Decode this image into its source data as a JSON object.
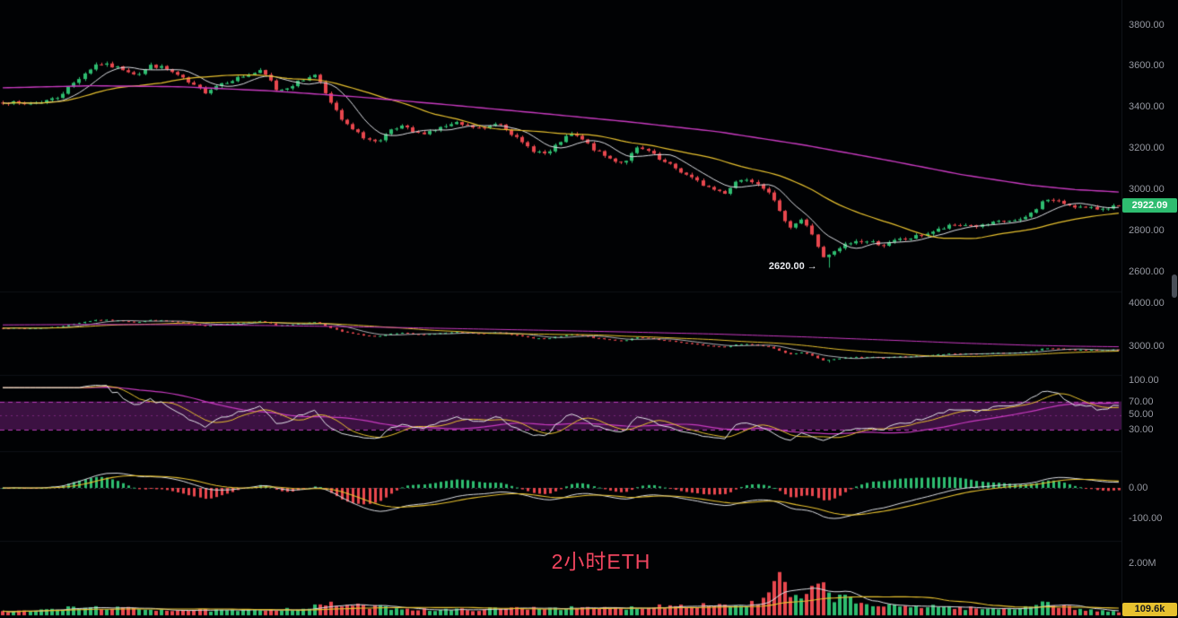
{
  "page": {
    "background": "#010204",
    "axis_text_color": "#9598a1"
  },
  "chart_data": [
    {
      "name": "price",
      "type": "candlestick",
      "candles": 205,
      "seed": 7,
      "noise": 9,
      "colors": {
        "up": "#2ebd70",
        "down": "#e8474e",
        "ma_fast": "#dcdee3",
        "ma_mid": "#e7c12f",
        "ma_slow": "#c93bc1"
      },
      "y_ticks": [
        {
          "value": 3800,
          "label": "3800.00",
          "y": 28
        },
        {
          "value": 3600,
          "label": "3600.00",
          "y": 73
        },
        {
          "value": 3400,
          "label": "3400.00",
          "y": 119
        },
        {
          "value": 3200,
          "label": "3200.00",
          "y": 165
        },
        {
          "value": 3000,
          "label": "3000.00",
          "y": 211
        },
        {
          "value": 2800,
          "label": "2800.00",
          "y": 257
        },
        {
          "value": 2600,
          "label": "2600.00",
          "y": 303
        }
      ],
      "candle_anchors": [
        [
          0,
          3430
        ],
        [
          0.016,
          3415
        ],
        [
          0.032,
          3425
        ],
        [
          0.048,
          3445
        ],
        [
          0.06,
          3500
        ],
        [
          0.073,
          3565
        ],
        [
          0.085,
          3615
        ],
        [
          0.097,
          3600
        ],
        [
          0.109,
          3585
        ],
        [
          0.121,
          3560
        ],
        [
          0.133,
          3605
        ],
        [
          0.145,
          3590
        ],
        [
          0.157,
          3555
        ],
        [
          0.169,
          3510
        ],
        [
          0.181,
          3475
        ],
        [
          0.194,
          3515
        ],
        [
          0.206,
          3535
        ],
        [
          0.218,
          3555
        ],
        [
          0.23,
          3575
        ],
        [
          0.238,
          3545
        ],
        [
          0.246,
          3480
        ],
        [
          0.258,
          3505
        ],
        [
          0.27,
          3535
        ],
        [
          0.278,
          3565
        ],
        [
          0.286,
          3515
        ],
        [
          0.294,
          3420
        ],
        [
          0.305,
          3330
        ],
        [
          0.316,
          3280
        ],
        [
          0.327,
          3245
        ],
        [
          0.337,
          3225
        ],
        [
          0.347,
          3285
        ],
        [
          0.359,
          3305
        ],
        [
          0.371,
          3270
        ],
        [
          0.383,
          3285
        ],
        [
          0.395,
          3305
        ],
        [
          0.407,
          3320
        ],
        [
          0.419,
          3305
        ],
        [
          0.431,
          3295
        ],
        [
          0.444,
          3330
        ],
        [
          0.453,
          3290
        ],
        [
          0.464,
          3230
        ],
        [
          0.476,
          3190
        ],
        [
          0.488,
          3170
        ],
        [
          0.5,
          3235
        ],
        [
          0.51,
          3270
        ],
        [
          0.52,
          3240
        ],
        [
          0.532,
          3185
        ],
        [
          0.544,
          3150
        ],
        [
          0.556,
          3130
        ],
        [
          0.569,
          3200
        ],
        [
          0.579,
          3185
        ],
        [
          0.589,
          3140
        ],
        [
          0.601,
          3110
        ],
        [
          0.613,
          3070
        ],
        [
          0.625,
          3030
        ],
        [
          0.637,
          3000
        ],
        [
          0.647,
          2985
        ],
        [
          0.657,
          3040
        ],
        [
          0.668,
          3055
        ],
        [
          0.677,
          3030
        ],
        [
          0.687,
          2990
        ],
        [
          0.695,
          2895
        ],
        [
          0.706,
          2820
        ],
        [
          0.716,
          2855
        ],
        [
          0.726,
          2780
        ],
        [
          0.735,
          2665
        ],
        [
          0.744,
          2690
        ],
        [
          0.754,
          2730
        ],
        [
          0.766,
          2750
        ],
        [
          0.778,
          2745
        ],
        [
          0.79,
          2730
        ],
        [
          0.802,
          2755
        ],
        [
          0.815,
          2765
        ],
        [
          0.827,
          2785
        ],
        [
          0.839,
          2805
        ],
        [
          0.851,
          2825
        ],
        [
          0.863,
          2830
        ],
        [
          0.875,
          2820
        ],
        [
          0.887,
          2835
        ],
        [
          0.899,
          2850
        ],
        [
          0.911,
          2845
        ],
        [
          0.923,
          2890
        ],
        [
          0.934,
          2955
        ],
        [
          0.945,
          2940
        ],
        [
          0.957,
          2925
        ],
        [
          0.968,
          2910
        ],
        [
          0.979,
          2905
        ],
        [
          0.99,
          2915
        ],
        [
          1,
          2922
        ]
      ],
      "ma_slow_anchors": [
        [
          0,
          3495
        ],
        [
          0.08,
          3505
        ],
        [
          0.16,
          3500
        ],
        [
          0.24,
          3480
        ],
        [
          0.32,
          3450
        ],
        [
          0.4,
          3412
        ],
        [
          0.48,
          3372
        ],
        [
          0.56,
          3330
        ],
        [
          0.64,
          3282
        ],
        [
          0.72,
          3215
        ],
        [
          0.8,
          3135
        ],
        [
          0.86,
          3072
        ],
        [
          0.92,
          3022
        ],
        [
          0.96,
          3000
        ],
        [
          1,
          2988
        ]
      ],
      "last_price": {
        "label": "2922.09",
        "value": 2922.09
      },
      "annotation": {
        "text": "2620.00 →",
        "price": 2620,
        "t": 0.735
      }
    },
    {
      "name": "secondary",
      "type": "candlestick",
      "y_ticks": [
        {
          "value": 4000,
          "label": "4000.00",
          "y": 338
        },
        {
          "value": 3000,
          "label": "3000.00",
          "y": 386
        }
      ]
    },
    {
      "name": "rsi",
      "type": "oscillator",
      "period": 14,
      "colors": {
        "fast": "#e3e5ea",
        "mid": "#e7c12f",
        "slow": "#c93bc1"
      },
      "band": {
        "from": 30,
        "to": 70,
        "fill": "rgba(150,40,160,0.40)",
        "edge": "#b33bb3"
      },
      "y_ticks": [
        {
          "value": 100,
          "label": "100.00",
          "y": 424
        },
        {
          "value": 70,
          "label": "70.00",
          "y": 448
        },
        {
          "value": 50,
          "label": "50.00",
          "y": 462
        },
        {
          "value": 30,
          "label": "30.00",
          "y": 479
        }
      ]
    },
    {
      "name": "macd",
      "type": "macd",
      "fast": 12,
      "slow": 26,
      "signal": 9,
      "colors": {
        "hist_up": "#2ebd70",
        "hist_down": "#e8474e",
        "dif": "#dcdee3",
        "dea": "#e7c12f"
      },
      "y_ticks": [
        {
          "value": 0,
          "label": "0.00",
          "y": 544
        },
        {
          "value": -100,
          "label": "-100.00",
          "y": 578
        }
      ]
    },
    {
      "name": "volume",
      "type": "volume",
      "colors": {
        "up": "#2ebd70",
        "down": "#e8474e",
        "ma_fast": "#dcdee3",
        "ma_mid": "#e7c12f"
      },
      "y_ticks": [
        {
          "value": 2000000,
          "label": "2.00M",
          "y": 628
        }
      ],
      "zero": {
        "value": 0,
        "y": 686
      },
      "anchors": [
        [
          0,
          140000
        ],
        [
          0.03,
          180000
        ],
        [
          0.06,
          280000
        ],
        [
          0.09,
          300000
        ],
        [
          0.12,
          240000
        ],
        [
          0.15,
          210000
        ],
        [
          0.18,
          190000
        ],
        [
          0.21,
          170000
        ],
        [
          0.24,
          230000
        ],
        [
          0.27,
          260000
        ],
        [
          0.29,
          420000
        ],
        [
          0.31,
          380000
        ],
        [
          0.33,
          330000
        ],
        [
          0.36,
          260000
        ],
        [
          0.39,
          200000
        ],
        [
          0.42,
          220000
        ],
        [
          0.45,
          260000
        ],
        [
          0.48,
          300000
        ],
        [
          0.5,
          280000
        ],
        [
          0.53,
          260000
        ],
        [
          0.56,
          280000
        ],
        [
          0.58,
          340000
        ],
        [
          0.6,
          380000
        ],
        [
          0.62,
          420000
        ],
        [
          0.64,
          400000
        ],
        [
          0.66,
          380000
        ],
        [
          0.68,
          500000
        ],
        [
          0.695,
          1450000
        ],
        [
          0.705,
          800000
        ],
        [
          0.715,
          600000
        ],
        [
          0.726,
          900000
        ],
        [
          0.735,
          1200000
        ],
        [
          0.745,
          700000
        ],
        [
          0.755,
          650000
        ],
        [
          0.77,
          450000
        ],
        [
          0.79,
          350000
        ],
        [
          0.81,
          320000
        ],
        [
          0.83,
          380000
        ],
        [
          0.85,
          300000
        ],
        [
          0.87,
          260000
        ],
        [
          0.89,
          240000
        ],
        [
          0.91,
          280000
        ],
        [
          0.93,
          520000
        ],
        [
          0.945,
          380000
        ],
        [
          0.96,
          260000
        ],
        [
          0.975,
          200000
        ],
        [
          0.99,
          150000
        ],
        [
          1,
          109600
        ]
      ],
      "last_volume": 109600,
      "badge": {
        "label": "109.6k",
        "bg": "#e7c12f",
        "fg": "#15181e"
      },
      "panel_label": {
        "text": "2小时ETH",
        "color": "#f0455f"
      }
    }
  ]
}
